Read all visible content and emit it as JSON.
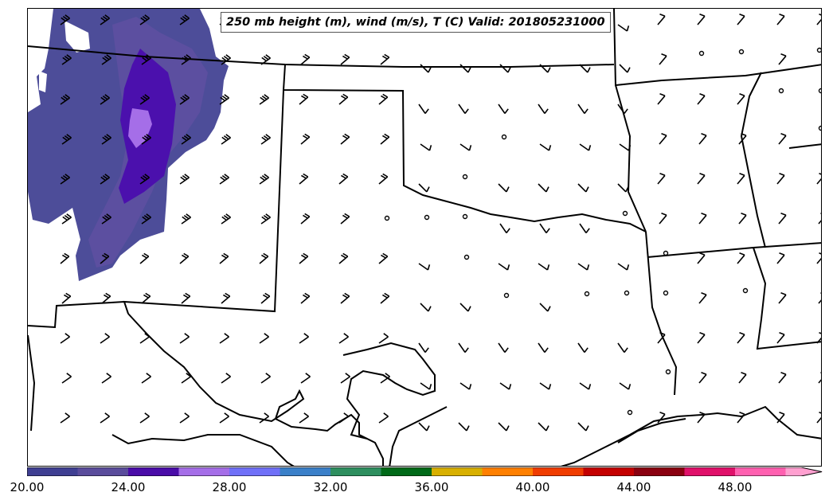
{
  "title": "250 mb height (m), wind (m/s), T (C) Valid: 201805231000",
  "colorbar": {
    "colors": [
      "#3f3f92",
      "#5a4c9c",
      "#4a0ca8",
      "#a56ee8",
      "#7070f8",
      "#3a80c9",
      "#2e8f5f",
      "#006a18",
      "#d8b000",
      "#ff8000",
      "#f03c00",
      "#c40000",
      "#8a0010",
      "#e0106a",
      "#ff60b0",
      "#ffa0d0"
    ],
    "labels": [
      "20.00",
      "24.00",
      "28.00",
      "32.00",
      "36.00",
      "40.00",
      "44.00",
      "48.00"
    ]
  }
}
